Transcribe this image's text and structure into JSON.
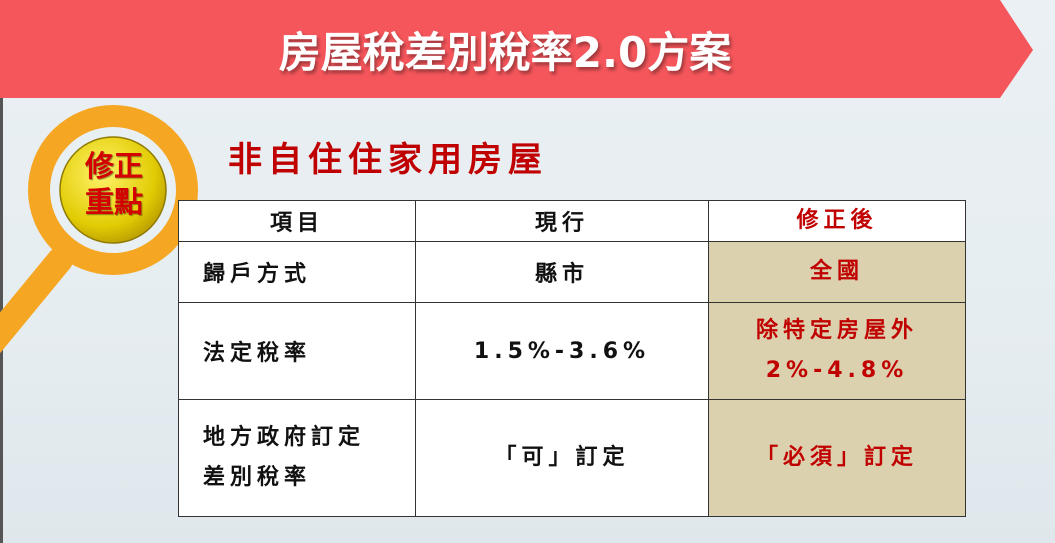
{
  "slide": {
    "title": "房屋稅差別稅率2.0方案",
    "subtitle": "非自住住家用房屋",
    "badge": {
      "line1": "修正",
      "line2": "重點"
    },
    "colors": {
      "banner": "#f4565b",
      "accent_red": "#c00000",
      "highlight_cell": "#dcd1ae",
      "magnifier_ring": "#f5a623",
      "badge_fill": "#e8d410"
    }
  },
  "table": {
    "headers": [
      "項目",
      "現行",
      "修正後"
    ],
    "rows": [
      {
        "item": "歸戶方式",
        "current": "縣市",
        "revised": [
          "全國"
        ]
      },
      {
        "item": "法定稅率",
        "current": "1.5%-3.6%",
        "revised": [
          "除特定房屋外",
          "2%-4.8%"
        ]
      },
      {
        "item": [
          "地方政府訂定",
          "差別稅率"
        ],
        "current": "「可」訂定",
        "revised": [
          "「必須」訂定"
        ]
      }
    ]
  }
}
